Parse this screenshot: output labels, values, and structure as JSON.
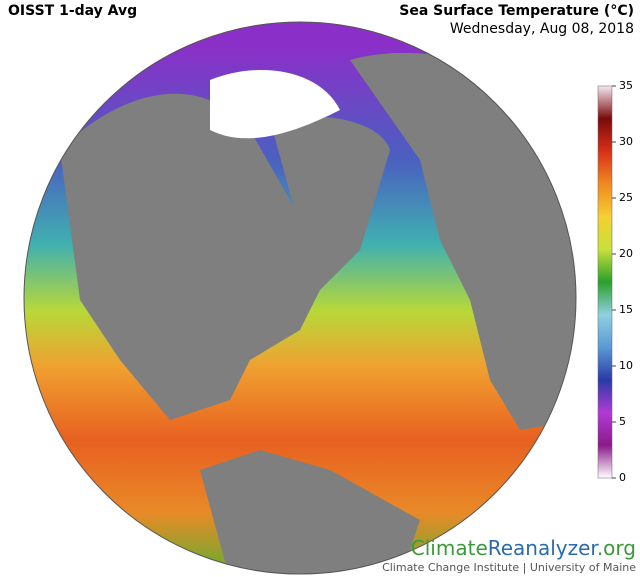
{
  "header": {
    "title": "OISST 1-day Avg",
    "variable": "Sea Surface Temperature (°C)",
    "date": "Wednesday, Aug 08, 2018"
  },
  "colorbar": {
    "range": [
      0,
      35
    ],
    "ticks": [
      0,
      5,
      10,
      15,
      20,
      25,
      30,
      35
    ],
    "colors": [
      "#ffffff",
      "#8a1a8a",
      "#b23ad6",
      "#2a3aa8",
      "#5a9ad6",
      "#8fd0e0",
      "#2aa02a",
      "#c8e03a",
      "#f5d030",
      "#f08a20",
      "#d83018",
      "#7a0a0a",
      "#f4e8f0"
    ]
  },
  "branding": {
    "logo_parts": [
      "Climate",
      "Reanalyzer",
      ".org"
    ],
    "credit": "Climate Change Institute | University of Maine"
  }
}
